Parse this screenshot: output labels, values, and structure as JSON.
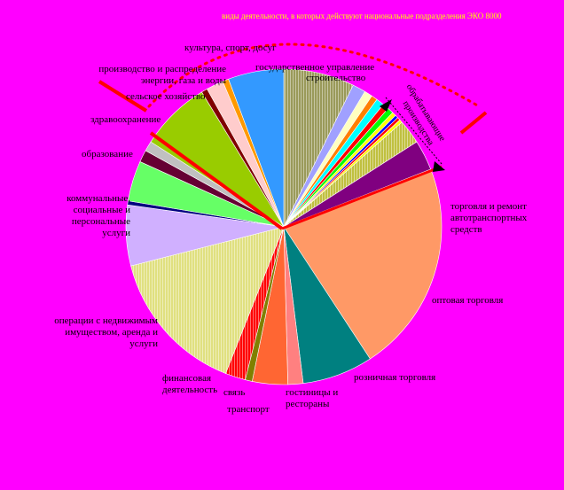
{
  "chart_data": {
    "type": "pie",
    "title": "",
    "note": "виды деятельности, в которых действуют национальные подразделения ЭКО 8000",
    "start_at": "12 o'clock",
    "direction": "clockwise",
    "slices": [
      {
        "label": "строительство",
        "value": 7.0,
        "color": "#9a9a5a",
        "hatch": true
      },
      {
        "label": "",
        "value": 1.3,
        "color": "#a0a0ff"
      },
      {
        "label": "",
        "value": 0.8,
        "color": "#ffffc0"
      },
      {
        "label": "",
        "value": 0.6,
        "color": "#ff8000"
      },
      {
        "label": "",
        "value": 0.8,
        "color": "#00ffff"
      },
      {
        "label": "",
        "value": 0.6,
        "color": "#ff0000"
      },
      {
        "label": "обрабатывающие производства",
        "value": 0.6,
        "color": "#00ff00"
      },
      {
        "label": "",
        "value": 0.4,
        "color": "#ffff00"
      },
      {
        "label": "",
        "value": 0.3,
        "color": "#0000ff"
      },
      {
        "label": "",
        "value": 0.3,
        "color": "#ff0000"
      },
      {
        "label": "",
        "value": 0.3,
        "color": "#ffff00"
      },
      {
        "label": "",
        "value": 2.4,
        "color": "#c0c040",
        "hatch": true
      },
      {
        "label": "торговля и ремонт автотранспортных средств",
        "value": 3.0,
        "color": "#800080"
      },
      {
        "label": "оптовая торговля",
        "value": 21.0,
        "color": "#ff9966"
      },
      {
        "label": "розничная торговля",
        "value": 7.0,
        "color": "#008080"
      },
      {
        "label": "гостиницы и рестораны",
        "value": 1.5,
        "color": "#ff8080"
      },
      {
        "label": "транспорт",
        "value": 3.5,
        "color": "#ff6633"
      },
      {
        "label": "связь",
        "value": 0.7,
        "color": "#808000"
      },
      {
        "label": "финансовая деятельность",
        "value": 2.0,
        "color": "#ff0000",
        "hatch": true
      },
      {
        "label": "операции с недвижимым имуществом, аренда и услуги",
        "value": 14.5,
        "color": "#e0e080",
        "hatch": true
      },
      {
        "label": "коммунальные, социальные и персональные услуги",
        "value": 6.0,
        "color": "#d0b0ff"
      },
      {
        "label": "",
        "value": 0.4,
        "color": "#000080"
      },
      {
        "label": "образование",
        "value": 4.0,
        "color": "#66ff66"
      },
      {
        "label": "",
        "value": 1.2,
        "color": "#660033"
      },
      {
        "label": "здравоохранение",
        "value": 1.0,
        "color": "#c0c0c0"
      },
      {
        "label": "сельское хозяйство",
        "value": 7.0,
        "color": "#99cc00"
      },
      {
        "label": "",
        "value": 0.6,
        "color": "#800000"
      },
      {
        "label": "производство и распределение энергии, газа и воды",
        "value": 1.7,
        "color": "#ffcccc"
      },
      {
        "label": "культура, спорт, досуг",
        "value": 0.6,
        "color": "#ff9900"
      },
      {
        "label": "государственное управление",
        "value": 5.5,
        "color": "#3399ff"
      }
    ]
  },
  "labels": {
    "note": "виды деятельности, в которых действуют национальные подразделения ЭКО 8000",
    "culture": "культура, спорт, досуг",
    "gov": "государственное управление",
    "construction": "строительство",
    "energy": "производство и распределение энергии, газа и воды",
    "agri": "сельское хозяйство",
    "health": "здравоохранение",
    "edu": "образование",
    "communal": "коммунальные, социальные и персональные услуги",
    "realty": "операции с недвижимым имуществом, аренда и услуги",
    "finance": "финансовая деятельность",
    "comm": "связь",
    "transport": "транспорт",
    "hotels": "гостиницы и рестораны",
    "retail": "розничная торговля",
    "wholesale": "оптовая торговля",
    "autotrade": "торговля и ремонт автотранспортных средств",
    "mfg_a": "обрабатывающие",
    "mfg_b": "производства"
  }
}
